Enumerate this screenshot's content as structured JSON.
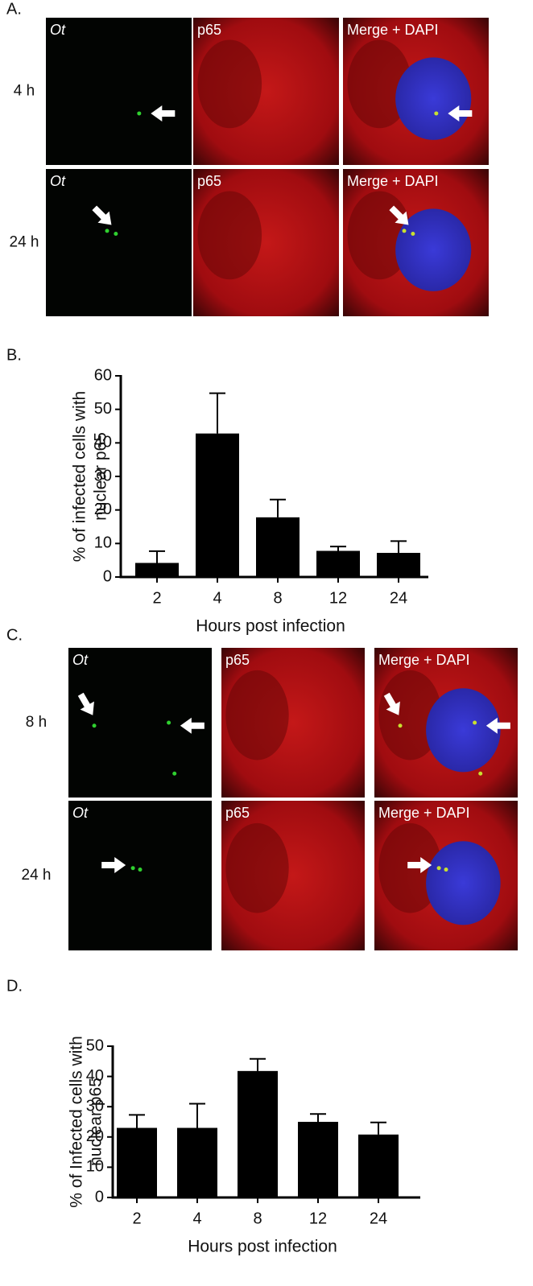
{
  "panel_labels": [
    "A.",
    "B.",
    "C.",
    "D."
  ],
  "image_panels": [
    {
      "rows": [
        "4 h",
        "24 h"
      ],
      "columns": [
        "Ot",
        "p65",
        "Merge + DAPI"
      ]
    },
    {
      "rows": [
        "8 h",
        "24 h"
      ],
      "columns": [
        "Ot",
        "p65",
        "Merge + DAPI"
      ]
    }
  ],
  "chart_data": [
    {
      "type": "bar",
      "y_label": [
        "%  of infected cells with",
        "nuclear p65"
      ],
      "x_label": "Hours post infection",
      "categories": [
        "2",
        "4",
        "8",
        "12",
        "24"
      ],
      "values": [
        4.2,
        42.8,
        17.8,
        7.8,
        7.2
      ],
      "errors": [
        3.5,
        12,
        5.3,
        1.3,
        3.5
      ],
      "color": "#000000",
      "ylim": [
        0,
        60
      ],
      "yticks": [
        0,
        10,
        20,
        30,
        40,
        50,
        60
      ]
    },
    {
      "type": "bar",
      "y_label": [
        "%  of Infected cells with",
        "nuclear p65"
      ],
      "x_label": "Hours post infection",
      "categories": [
        "2",
        "4",
        "8",
        "12",
        "24"
      ],
      "values": [
        23,
        23,
        41.8,
        25,
        20.8
      ],
      "errors": [
        4.3,
        8,
        4,
        2.6,
        4
      ],
      "color": "#000000",
      "ylim": [
        0,
        50
      ],
      "yticks": [
        0,
        10,
        20,
        30,
        40,
        50
      ]
    }
  ]
}
